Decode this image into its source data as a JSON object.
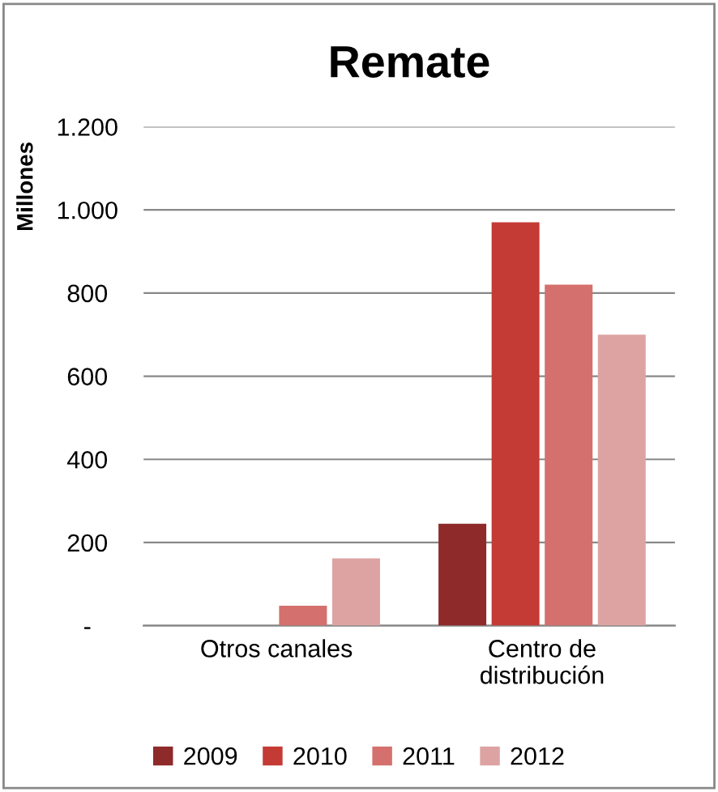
{
  "chart_data": {
    "type": "bar",
    "title": "Remate",
    "ylabel": "Millones",
    "categories": [
      "Otros canales",
      "Centro de\ndistribución"
    ],
    "series": [
      {
        "name": "2009",
        "color": "#8e2a2a",
        "values": [
          0,
          245
        ]
      },
      {
        "name": "2010",
        "color": "#c43a35",
        "values": [
          0,
          970
        ]
      },
      {
        "name": "2011",
        "color": "#d4706d",
        "values": [
          48,
          820
        ]
      },
      {
        "name": "2012",
        "color": "#dda3a3",
        "values": [
          162,
          700
        ]
      }
    ],
    "ylim": [
      0,
      1200
    ],
    "yticks": [
      {
        "value": 0,
        "label": "-"
      },
      {
        "value": 200,
        "label": "200"
      },
      {
        "value": 400,
        "label": "400"
      },
      {
        "value": 600,
        "label": "600"
      },
      {
        "value": 800,
        "label": "800"
      },
      {
        "value": 1000,
        "label": "1.000"
      },
      {
        "value": 1200,
        "label": "1.200"
      }
    ],
    "grid": "y",
    "legend": "bottom"
  }
}
